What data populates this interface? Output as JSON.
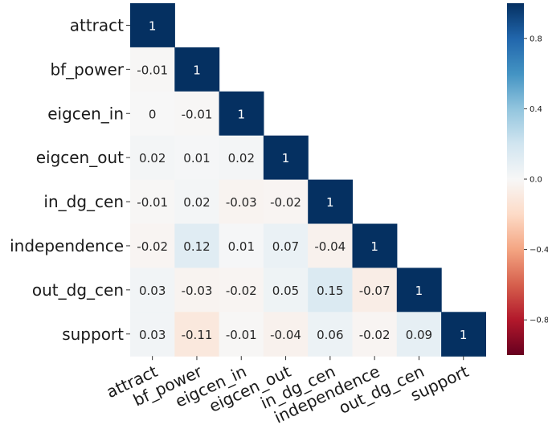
{
  "chart_data": {
    "type": "heatmap",
    "title": "",
    "xlabel": "",
    "ylabel": "",
    "labels": [
      "attract",
      "bf_power",
      "eigcen_in",
      "eigcen_out",
      "in_dg_cen",
      "independence",
      "out_dg_cen",
      "support"
    ],
    "matrix": [
      [
        1,
        null,
        null,
        null,
        null,
        null,
        null,
        null
      ],
      [
        -0.01,
        1,
        null,
        null,
        null,
        null,
        null,
        null
      ],
      [
        0,
        -0.01,
        1,
        null,
        null,
        null,
        null,
        null
      ],
      [
        0.02,
        0.01,
        0.02,
        1,
        null,
        null,
        null,
        null
      ],
      [
        -0.01,
        0.02,
        -0.03,
        -0.02,
        1,
        null,
        null,
        null
      ],
      [
        -0.02,
        0.12,
        0.01,
        0.07,
        -0.04,
        1,
        null,
        null
      ],
      [
        0.03,
        -0.03,
        -0.02,
        0.05,
        0.15,
        -0.07,
        1,
        null
      ],
      [
        0.03,
        -0.11,
        -0.01,
        -0.04,
        0.06,
        -0.02,
        0.09,
        1
      ]
    ],
    "value_labels": [
      [
        "1",
        "",
        "",
        "",
        "",
        "",
        "",
        ""
      ],
      [
        "-0.01",
        "1",
        "",
        "",
        "",
        "",
        "",
        ""
      ],
      [
        "0",
        "-0.01",
        "1",
        "",
        "",
        "",
        "",
        ""
      ],
      [
        "0.02",
        "0.01",
        "0.02",
        "1",
        "",
        "",
        "",
        ""
      ],
      [
        "-0.01",
        "0.02",
        "-0.03",
        "-0.02",
        "1",
        "",
        "",
        ""
      ],
      [
        "-0.02",
        "0.12",
        "0.01",
        "0.07",
        "-0.04",
        "1",
        "",
        ""
      ],
      [
        "0.03",
        "-0.03",
        "-0.02",
        "0.05",
        "0.15",
        "-0.07",
        "1",
        ""
      ],
      [
        "0.03",
        "-0.11",
        "-0.01",
        "-0.04",
        "0.06",
        "-0.02",
        "0.09",
        "1"
      ]
    ],
    "mask": "upper-triangle",
    "colormap": "RdBu",
    "vmin": -1,
    "vmax": 1,
    "colorbar": {
      "ticks": [
        0.8,
        0.4,
        0.0,
        -0.4,
        -0.8
      ],
      "tick_labels": [
        "0.8",
        "0.4",
        "0.0",
        "−0.4",
        "−0.8"
      ]
    },
    "colors": {
      "strong_positive": "#053061",
      "neutral": "#f7f7f7",
      "strong_negative": "#67001f"
    }
  }
}
